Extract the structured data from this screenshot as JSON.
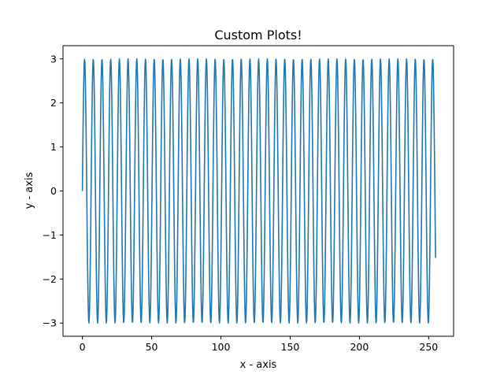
{
  "chart_data": {
    "type": "line",
    "title": "Custom Plots!",
    "xlabel": "x - axis",
    "ylabel": "y - axis",
    "xlim": [
      -14,
      268
    ],
    "ylim": [
      -3.3,
      3.3
    ],
    "xticks": [
      0,
      50,
      100,
      150,
      200,
      250
    ],
    "xtick_labels": [
      "0",
      "50",
      "100",
      "150",
      "200",
      "250"
    ],
    "yticks": [
      -3,
      -2,
      -1,
      0,
      1,
      2,
      3
    ],
    "ytick_labels": [
      "−3",
      "−2",
      "−1",
      "0",
      "1",
      "2",
      "3"
    ],
    "grid": false,
    "series": [
      {
        "color": "#1f77b4",
        "x_start": 0,
        "x_end": 255,
        "y_formula": "3*sin(x)",
        "y": [
          2.83,
          0.27,
          -2.95,
          0.26,
          2.84,
          -1.21,
          -2.65,
          1.98,
          2.24,
          -2.93,
          -1.48,
          2.78,
          1.12,
          -2.94,
          -0.29,
          2.83,
          -0.54,
          -3.0,
          1.38,
          2.62,
          -2.1,
          -2.1,
          2.57,
          1.44,
          -2.98,
          -0.49,
          2.84,
          -0.34,
          -2.91,
          1.18,
          2.8,
          -1.7,
          -2.39,
          2.33,
          1.91,
          -2.74,
          -1.32,
          2.98,
          0.68,
          -3.0,
          0.05
        ]
      }
    ]
  }
}
